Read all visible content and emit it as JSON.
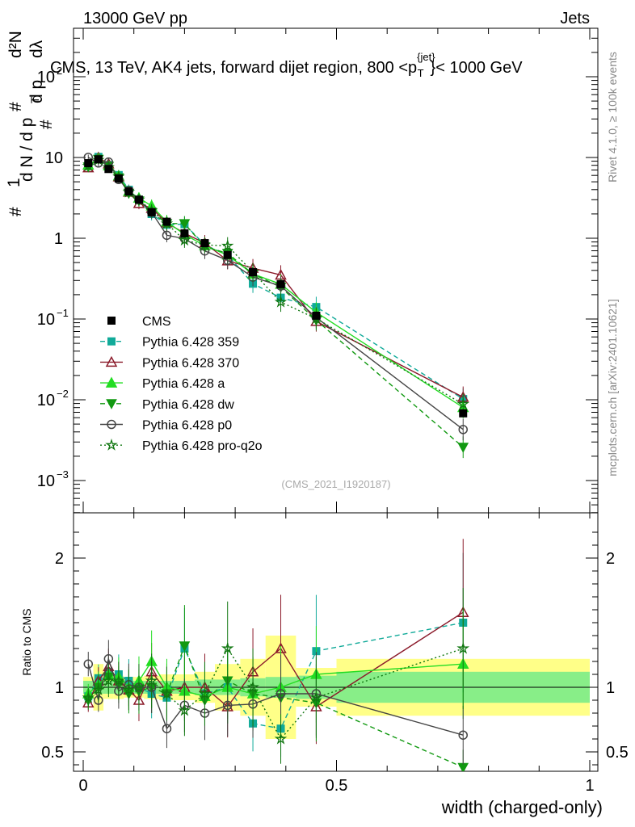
{
  "header": {
    "left": "13000 GeV pp",
    "right": "Jets"
  },
  "side": {
    "rivet": "Rivet 4.1.0, ≥ 100k events",
    "mcplots": "mcplots.cern.ch [arXiv:2401.10621]"
  },
  "chart_data": {
    "type": "line",
    "title": "CMS, 13 TeV, AK4 jets, forward dijet region, 800 <p",
    "title_sup": "{jet}",
    "title_sub": "T",
    "title_end": "}< 1000 GeV",
    "watermark": "(CMS_2021_I1920187)",
    "xlabel": "width (charged-only)",
    "ylabel_parts": {
      "hash": "#",
      "one": "1",
      "dN": "d N / d p",
      "T": "T",
      "d2N": "d²N",
      "dpt": "d p",
      "dl": "dλ"
    },
    "ratio_ylabel": "Ratio to CMS",
    "xlim": [
      0,
      1
    ],
    "ylim": [
      0.0005,
      300
    ],
    "ratio_ylim": [
      0.35,
      2.35
    ],
    "x_tick_labels": [
      "0",
      "0.5",
      "1"
    ],
    "y_tick_labels": [
      {
        "v": 100,
        "base": "10",
        "exp": "2"
      },
      {
        "v": 10,
        "base": "10",
        "exp": ""
      },
      {
        "v": 1,
        "base": "1",
        "exp": ""
      },
      {
        "v": 0.1,
        "base": "10",
        "exp": "−1"
      },
      {
        "v": 0.01,
        "base": "10",
        "exp": "−2"
      },
      {
        "v": 0.001,
        "base": "10",
        "exp": "−3"
      }
    ],
    "ratio_tick_labels": [
      "2",
      "1",
      "0.5"
    ],
    "ratio_tick_values": [
      2,
      1,
      0.5
    ],
    "x": [
      0.01,
      0.03,
      0.05,
      0.07,
      0.09,
      0.11,
      0.135,
      0.165,
      0.2,
      0.24,
      0.285,
      0.335,
      0.39,
      0.46,
      0.75
    ],
    "bin_edges": [
      0.0,
      0.02,
      0.04,
      0.06,
      0.08,
      0.1,
      0.12,
      0.15,
      0.18,
      0.22,
      0.26,
      0.31,
      0.36,
      0.42,
      0.5,
      1.0
    ],
    "data": {
      "name": "CMS",
      "values": [
        8.5,
        9.5,
        7.2,
        5.5,
        3.8,
        3.0,
        2.1,
        1.6,
        1.15,
        0.87,
        0.62,
        0.38,
        0.27,
        0.11,
        0.0068
      ],
      "stat_band": [
        0.05,
        0.05,
        0.05,
        0.05,
        0.05,
        0.05,
        0.05,
        0.05,
        0.05,
        0.06,
        0.06,
        0.07,
        0.08,
        0.09,
        0.12
      ],
      "tot_band": [
        0.08,
        0.18,
        0.09,
        0.09,
        0.08,
        0.08,
        0.09,
        0.1,
        0.1,
        0.12,
        0.18,
        0.22,
        0.4,
        0.15,
        0.22
      ]
    },
    "series": [
      {
        "name": "Pythia 6.428 359",
        "color": "#11aa99",
        "dash": "6,4",
        "marker": "square",
        "ratio": [
          0.93,
          1.07,
          1.12,
          1.1,
          1.05,
          1.0,
          0.95,
          0.92,
          1.3,
          0.95,
          1.0,
          0.72,
          0.68,
          1.28,
          1.5
        ]
      },
      {
        "name": "Pythia 6.428 370",
        "color": "#8b1a2a",
        "dash": "",
        "marker": "triangle-open",
        "ratio": [
          0.88,
          1.05,
          1.16,
          1.05,
          0.98,
          0.9,
          1.12,
          0.97,
          1.0,
          1.0,
          0.85,
          1.12,
          1.3,
          0.85,
          1.58
        ]
      },
      {
        "name": "Pythia 6.428 a",
        "color": "#22dd22",
        "dash": "",
        "marker": "triangle",
        "ratio": [
          0.95,
          1.02,
          1.1,
          1.08,
          1.0,
          1.05,
          1.2,
          1.0,
          0.97,
          0.93,
          1.0,
          0.95,
          1.0,
          1.1,
          1.18
        ]
      },
      {
        "name": "Pythia 6.428 dw",
        "color": "#119911",
        "dash": "6,4",
        "marker": "triangle-down",
        "ratio": [
          0.9,
          1.0,
          1.08,
          1.02,
          0.95,
          0.97,
          1.0,
          0.95,
          1.32,
          0.9,
          1.05,
          0.95,
          0.92,
          0.88,
          0.38
        ]
      },
      {
        "name": "Pythia 6.428 p0",
        "color": "#444444",
        "dash": "",
        "marker": "circle-open",
        "ratio": [
          1.18,
          0.9,
          1.22,
          0.97,
          1.02,
          1.0,
          1.0,
          0.68,
          0.86,
          0.8,
          0.86,
          0.87,
          0.95,
          0.95,
          0.63
        ]
      },
      {
        "name": "Pythia 6.428 pro-q2o",
        "color": "#117711",
        "dash": "2,3",
        "marker": "star",
        "ratio": [
          0.92,
          0.98,
          1.05,
          1.05,
          0.98,
          1.0,
          1.05,
          0.95,
          0.82,
          0.95,
          1.3,
          1.0,
          0.6,
          0.92,
          1.3
        ]
      }
    ],
    "legend": {
      "data_label": "CMS",
      "placement": "center-left"
    }
  }
}
